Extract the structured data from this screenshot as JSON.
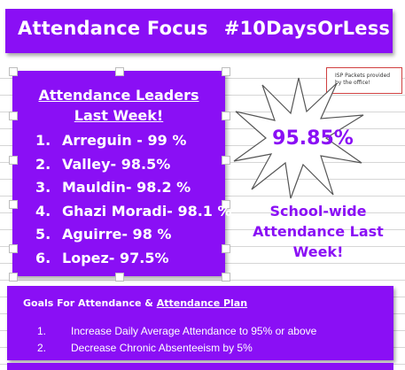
{
  "header": {
    "title": "Attendance Focus",
    "hashtag": "#10DaysOrLess"
  },
  "leaders": {
    "title_line1": "Attendance Leaders",
    "title_line2": "Last Week!",
    "items": [
      {
        "num": "1.",
        "text": "Arreguin - 99 %"
      },
      {
        "num": "2.",
        "text": "Valley- 98.5%"
      },
      {
        "num": "3.",
        "text": "Mauldin- 98.2 %"
      },
      {
        "num": "4.",
        "text": "Ghazi Moradi- 98.1 %"
      },
      {
        "num": "5.",
        "text": "Aguirre- 98 %"
      },
      {
        "num": "6.",
        "text": "Lopez- 97.5%"
      }
    ]
  },
  "note": {
    "text": "ISP Packets provided by the office!"
  },
  "burst": {
    "value": "95.85%",
    "caption_line1": "School-wide",
    "caption_line2": "Attendance Last",
    "caption_line3": "Week!"
  },
  "goals": {
    "title_prefix": "Goals For Attendance & ",
    "title_link": "Attendance Plan",
    "items": [
      {
        "num": "1.",
        "text": "Increase Daily Average Attendance to 95% or above"
      },
      {
        "num": "2.",
        "text": "Decrease Chronic Absenteeism by 5%"
      }
    ]
  },
  "colors": {
    "purple": "#8a0ff5",
    "white": "#ffffff"
  }
}
